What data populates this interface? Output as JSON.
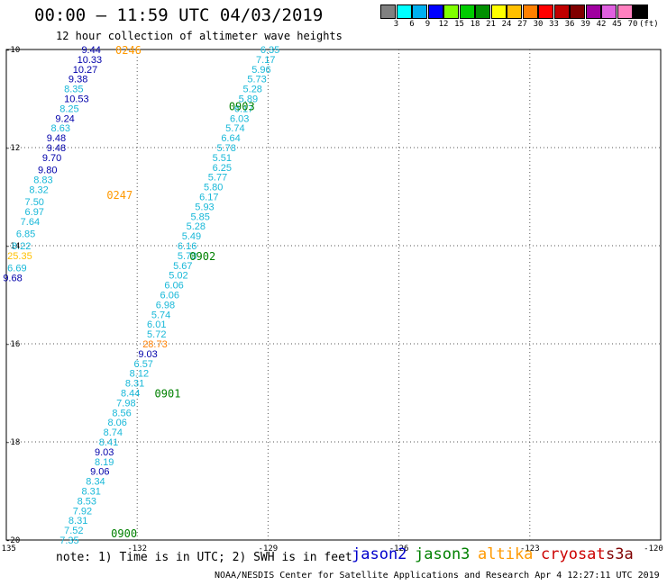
{
  "title": "00:00 – 11:59 UTC 04/03/2019",
  "subtitle": "12 hour collection of altimeter wave heights",
  "colorbar": {
    "colors": [
      "#808080",
      "#00ffff",
      "#00b0f0",
      "#0000ff",
      "#80ff00",
      "#00cc00",
      "#009000",
      "#ffff00",
      "#ffc000",
      "#ff8000",
      "#ff0000",
      "#c00000",
      "#800000",
      "#a000a0",
      "#e060e0",
      "#ff80c0",
      "#000000"
    ],
    "labels": [
      "3",
      "6",
      "9",
      "12",
      "15",
      "18",
      "21",
      "24",
      "27",
      "30",
      "33",
      "36",
      "39",
      "42",
      "45",
      "70"
    ],
    "unit": "(ft)"
  },
  "chart_data": {
    "type": "scatter",
    "x_ticks": [
      "-135",
      "-132",
      "-129",
      "-126",
      "-123",
      "-120"
    ],
    "y_ticks": [
      "-10",
      "-12",
      "-14",
      "-16",
      "-18",
      "-20"
    ],
    "xlim": [
      -135,
      -120
    ],
    "ylim": [
      -20,
      -10
    ],
    "grid": true,
    "tracks": [
      {
        "label": "0246",
        "label_pos": [
          -132.5,
          -10.0
        ],
        "satellite": "altika"
      },
      {
        "label": "0247",
        "label_pos": [
          -132.7,
          -12.95
        ],
        "satellite": "altika"
      },
      {
        "label": "0903",
        "label_pos": [
          -129.9,
          -11.15
        ],
        "satellite": "jason3"
      },
      {
        "label": "0902",
        "label_pos": [
          -130.8,
          -14.2
        ],
        "satellite": "jason3"
      },
      {
        "label": "0901",
        "label_pos": [
          -131.6,
          -17.0
        ],
        "satellite": "jason3"
      },
      {
        "label": "0900",
        "label_pos": [
          -132.6,
          -19.85
        ],
        "satellite": "jason3"
      }
    ],
    "points": [
      {
        "lon": -133.4,
        "lat": -10.0,
        "swh": "9.44",
        "sat": "jason2"
      },
      {
        "lon": -133.5,
        "lat": -10.2,
        "swh": "10.33",
        "sat": "jason2"
      },
      {
        "lon": -133.6,
        "lat": -10.4,
        "swh": "10.27",
        "sat": "jason2"
      },
      {
        "lon": -133.7,
        "lat": -10.6,
        "swh": "9.38",
        "sat": "jason2"
      },
      {
        "lon": -133.8,
        "lat": -10.8,
        "swh": "8.35",
        "sat": "s3a"
      },
      {
        "lon": -133.8,
        "lat": -11.0,
        "swh": "10.53",
        "sat": "jason2"
      },
      {
        "lon": -133.9,
        "lat": -11.2,
        "swh": "8.25",
        "sat": "s3a"
      },
      {
        "lon": -134.0,
        "lat": -11.4,
        "swh": "9.24",
        "sat": "jason2"
      },
      {
        "lon": -134.1,
        "lat": -11.6,
        "swh": "8.63",
        "sat": "s3a"
      },
      {
        "lon": -134.2,
        "lat": -11.8,
        "swh": "9.48",
        "sat": "jason2"
      },
      {
        "lon": -134.2,
        "lat": -12.0,
        "swh": "9.48",
        "sat": "jason2"
      },
      {
        "lon": -134.3,
        "lat": -12.2,
        "swh": "9.70",
        "sat": "jason2"
      },
      {
        "lon": -134.4,
        "lat": -12.45,
        "swh": "9.80",
        "sat": "jason2"
      },
      {
        "lon": -134.5,
        "lat": -12.65,
        "swh": "8.83",
        "sat": "s3a"
      },
      {
        "lon": -134.6,
        "lat": -12.85,
        "swh": "8.32",
        "sat": "s3a"
      },
      {
        "lon": -134.7,
        "lat": -13.1,
        "swh": "7.50",
        "sat": "s3a"
      },
      {
        "lon": -134.7,
        "lat": -13.3,
        "swh": "6.97",
        "sat": "s3a"
      },
      {
        "lon": -134.8,
        "lat": -13.5,
        "swh": "7.64",
        "sat": "s3a"
      },
      {
        "lon": -134.9,
        "lat": -13.75,
        "swh": "6.85",
        "sat": "s3a"
      },
      {
        "lon": -135.0,
        "lat": -14.0,
        "swh": "8.22",
        "sat": "s3a"
      },
      {
        "lon": -135.1,
        "lat": -14.2,
        "swh": "25.35",
        "sat": "s3a",
        "color": "#ffc000"
      },
      {
        "lon": -135.1,
        "lat": -14.45,
        "swh": "6.69",
        "sat": "s3a"
      },
      {
        "lon": -135.2,
        "lat": -14.65,
        "swh": "9.68",
        "sat": "jason2"
      },
      {
        "lon": -129.3,
        "lat": -10.0,
        "swh": "6.35",
        "sat": "s3a"
      },
      {
        "lon": -129.4,
        "lat": -10.2,
        "swh": "7.17",
        "sat": "s3a"
      },
      {
        "lon": -129.5,
        "lat": -10.4,
        "swh": "5.96",
        "sat": "s3a"
      },
      {
        "lon": -129.6,
        "lat": -10.6,
        "swh": "5.73",
        "sat": "s3a"
      },
      {
        "lon": -129.7,
        "lat": -10.8,
        "swh": "5.28",
        "sat": "s3a"
      },
      {
        "lon": -129.8,
        "lat": -11.0,
        "swh": "5.89",
        "sat": "s3a"
      },
      {
        "lon": -129.9,
        "lat": -11.2,
        "swh": "6.17",
        "sat": "s3a"
      },
      {
        "lon": -130.0,
        "lat": -11.4,
        "swh": "6.03",
        "sat": "s3a"
      },
      {
        "lon": -130.1,
        "lat": -11.6,
        "swh": "5.74",
        "sat": "s3a"
      },
      {
        "lon": -130.2,
        "lat": -11.8,
        "swh": "6.64",
        "sat": "s3a"
      },
      {
        "lon": -130.3,
        "lat": -12.0,
        "swh": "5.78",
        "sat": "s3a"
      },
      {
        "lon": -130.4,
        "lat": -12.2,
        "swh": "5.51",
        "sat": "s3a"
      },
      {
        "lon": -130.4,
        "lat": -12.4,
        "swh": "6.25",
        "sat": "s3a"
      },
      {
        "lon": -130.5,
        "lat": -12.6,
        "swh": "5.77",
        "sat": "s3a"
      },
      {
        "lon": -130.6,
        "lat": -12.8,
        "swh": "5.80",
        "sat": "s3a"
      },
      {
        "lon": -130.7,
        "lat": -13.0,
        "swh": "6.17",
        "sat": "s3a"
      },
      {
        "lon": -130.8,
        "lat": -13.2,
        "swh": "5.93",
        "sat": "s3a"
      },
      {
        "lon": -130.9,
        "lat": -13.4,
        "swh": "5.85",
        "sat": "s3a"
      },
      {
        "lon": -131.0,
        "lat": -13.6,
        "swh": "5.28",
        "sat": "s3a"
      },
      {
        "lon": -131.1,
        "lat": -13.8,
        "swh": "5.49",
        "sat": "s3a"
      },
      {
        "lon": -131.2,
        "lat": -14.0,
        "swh": "6.16",
        "sat": "s3a"
      },
      {
        "lon": -131.2,
        "lat": -14.2,
        "swh": "5.73",
        "sat": "s3a"
      },
      {
        "lon": -131.3,
        "lat": -14.4,
        "swh": "5.67",
        "sat": "s3a"
      },
      {
        "lon": -131.4,
        "lat": -14.6,
        "swh": "5.02",
        "sat": "s3a"
      },
      {
        "lon": -131.5,
        "lat": -14.8,
        "swh": "6.06",
        "sat": "s3a"
      },
      {
        "lon": -131.6,
        "lat": -15.0,
        "swh": "6.06",
        "sat": "s3a"
      },
      {
        "lon": -131.7,
        "lat": -15.2,
        "swh": "6.98",
        "sat": "s3a"
      },
      {
        "lon": -131.8,
        "lat": -15.4,
        "swh": "5.74",
        "sat": "s3a"
      },
      {
        "lon": -131.9,
        "lat": -15.6,
        "swh": "6.01",
        "sat": "s3a"
      },
      {
        "lon": -131.9,
        "lat": -15.8,
        "swh": "5.72",
        "sat": "s3a"
      },
      {
        "lon": -132.0,
        "lat": -16.0,
        "swh": "28.73",
        "sat": "s3a",
        "color": "#ff8000"
      },
      {
        "lon": -132.1,
        "lat": -16.2,
        "swh": "9.03",
        "sat": "jason2"
      },
      {
        "lon": -132.2,
        "lat": -16.4,
        "swh": "6.57",
        "sat": "s3a"
      },
      {
        "lon": -132.3,
        "lat": -16.6,
        "swh": "8.12",
        "sat": "s3a"
      },
      {
        "lon": -132.4,
        "lat": -16.8,
        "swh": "8.31",
        "sat": "s3a"
      },
      {
        "lon": -132.5,
        "lat": -17.0,
        "swh": "8.44",
        "sat": "s3a"
      },
      {
        "lon": -132.6,
        "lat": -17.2,
        "swh": "7.98",
        "sat": "s3a"
      },
      {
        "lon": -132.7,
        "lat": -17.4,
        "swh": "8.56",
        "sat": "s3a"
      },
      {
        "lon": -132.8,
        "lat": -17.6,
        "swh": "8.06",
        "sat": "s3a"
      },
      {
        "lon": -132.9,
        "lat": -17.8,
        "swh": "8.74",
        "sat": "s3a"
      },
      {
        "lon": -133.0,
        "lat": -18.0,
        "swh": "8.41",
        "sat": "s3a"
      },
      {
        "lon": -133.1,
        "lat": -18.2,
        "swh": "9.03",
        "sat": "jason2"
      },
      {
        "lon": -133.1,
        "lat": -18.4,
        "swh": "8.19",
        "sat": "s3a"
      },
      {
        "lon": -133.2,
        "lat": -18.6,
        "swh": "9.06",
        "sat": "jason2"
      },
      {
        "lon": -133.3,
        "lat": -18.8,
        "swh": "8.34",
        "sat": "s3a"
      },
      {
        "lon": -133.4,
        "lat": -19.0,
        "swh": "8.31",
        "sat": "s3a"
      },
      {
        "lon": -133.5,
        "lat": -19.2,
        "swh": "8.53",
        "sat": "s3a"
      },
      {
        "lon": -133.6,
        "lat": -19.4,
        "swh": "7.92",
        "sat": "s3a"
      },
      {
        "lon": -133.7,
        "lat": -19.6,
        "swh": "8.31",
        "sat": "s3a"
      },
      {
        "lon": -133.8,
        "lat": -19.8,
        "swh": "7.52",
        "sat": "s3a"
      },
      {
        "lon": -133.9,
        "lat": -20.0,
        "swh": "7.35",
        "sat": "s3a"
      }
    ]
  },
  "note": "note: 1) Time is in UTC; 2) SWH is in feet",
  "satellites": [
    {
      "name": "jason2",
      "color": "#0000cc"
    },
    {
      "name": "jason3",
      "color": "#008000"
    },
    {
      "name": "altika",
      "color": "#ff9900"
    },
    {
      "name": "cryosat",
      "color": "#cc0000"
    },
    {
      "name": "s3a",
      "color": "#800000"
    }
  ],
  "point_colors": {
    "jason2": "#0000aa",
    "s3a": "#18b8d8",
    "jason3": "#008000",
    "altika": "#ff9900"
  },
  "footer": "NOAA/NESDIS Center for Satellite Applications and Research   Apr  4 12:27:11 UTC 2019"
}
